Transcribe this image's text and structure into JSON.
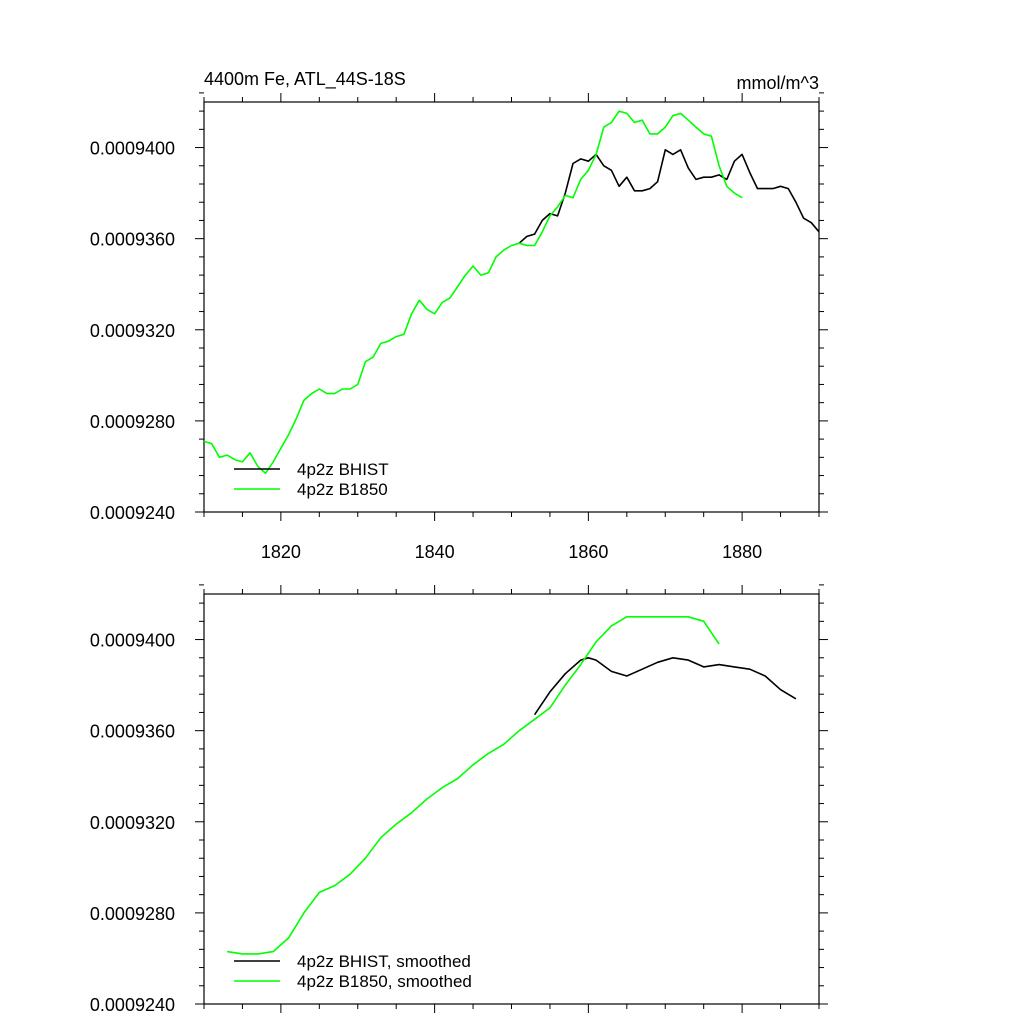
{
  "chart_data": [
    {
      "type": "line",
      "title": "4400m Fe, ATL_44S-18S",
      "units": "mmol/m^3",
      "xlabel": "",
      "ylabel": "",
      "xlim": [
        1810,
        1890
      ],
      "ylim": [
        0.000924,
        0.000942
      ],
      "x_ticks": [
        1820,
        1840,
        1860,
        1880
      ],
      "x_tick_labels": [
        "1820",
        "1840",
        "1860",
        "1880"
      ],
      "y_ticks": [
        0.000924,
        0.000928,
        0.000932,
        0.000936,
        0.00094
      ],
      "y_tick_labels": [
        "0.0009240",
        "0.0009280",
        "0.0009320",
        "0.0009360",
        "0.0009400"
      ],
      "legend_position": "bottom-left",
      "series": [
        {
          "name": "4p2z BHIST",
          "color": "#000000",
          "x": [
            1851,
            1852,
            1853,
            1854,
            1855,
            1856,
            1857,
            1858,
            1859,
            1860,
            1861,
            1862,
            1863,
            1864,
            1865,
            1866,
            1867,
            1868,
            1869,
            1870,
            1871,
            1872,
            1873,
            1874,
            1875,
            1876,
            1877,
            1878,
            1879,
            1880,
            1881,
            1882,
            1883,
            1884,
            1885,
            1886,
            1887,
            1888,
            1889,
            1890
          ],
          "values": [
            0.0009358,
            0.0009361,
            0.0009362,
            0.0009368,
            0.0009371,
            0.000937,
            0.000938,
            0.0009393,
            0.0009395,
            0.0009394,
            0.0009397,
            0.0009392,
            0.000939,
            0.0009383,
            0.0009387,
            0.0009381,
            0.0009381,
            0.0009382,
            0.0009385,
            0.0009399,
            0.0009397,
            0.0009399,
            0.0009391,
            0.0009386,
            0.0009387,
            0.0009387,
            0.0009388,
            0.0009386,
            0.0009394,
            0.0009397,
            0.0009389,
            0.0009382,
            0.0009382,
            0.0009382,
            0.0009383,
            0.0009382,
            0.0009376,
            0.0009369,
            0.0009367,
            0.0009363
          ]
        },
        {
          "name": "4p2z B1850",
          "color": "#00ff00",
          "x": [
            1810,
            1811,
            1812,
            1813,
            1814,
            1815,
            1816,
            1817,
            1818,
            1819,
            1820,
            1821,
            1822,
            1823,
            1824,
            1825,
            1826,
            1827,
            1828,
            1829,
            1830,
            1831,
            1832,
            1833,
            1834,
            1835,
            1836,
            1837,
            1838,
            1839,
            1840,
            1841,
            1842,
            1843,
            1844,
            1845,
            1846,
            1847,
            1848,
            1849,
            1850,
            1851,
            1852,
            1853,
            1854,
            1855,
            1856,
            1857,
            1858,
            1859,
            1860,
            1861,
            1862,
            1863,
            1864,
            1865,
            1866,
            1867,
            1868,
            1869,
            1870,
            1871,
            1872,
            1873,
            1874,
            1875,
            1876,
            1877,
            1878,
            1879,
            1880
          ],
          "values": [
            0.0009271,
            0.000927,
            0.0009264,
            0.0009265,
            0.0009263,
            0.0009262,
            0.0009266,
            0.000926,
            0.0009257,
            0.0009262,
            0.0009268,
            0.0009274,
            0.0009281,
            0.0009289,
            0.0009292,
            0.0009294,
            0.0009292,
            0.0009292,
            0.0009294,
            0.0009294,
            0.0009296,
            0.0009306,
            0.0009308,
            0.0009314,
            0.0009315,
            0.0009317,
            0.0009318,
            0.0009327,
            0.0009333,
            0.0009329,
            0.0009327,
            0.0009332,
            0.0009334,
            0.0009339,
            0.0009344,
            0.0009348,
            0.0009344,
            0.0009345,
            0.0009352,
            0.0009355,
            0.0009357,
            0.0009358,
            0.0009357,
            0.0009357,
            0.0009363,
            0.000937,
            0.0009374,
            0.0009379,
            0.0009378,
            0.0009386,
            0.000939,
            0.0009397,
            0.0009409,
            0.0009411,
            0.0009416,
            0.0009415,
            0.0009411,
            0.0009412,
            0.0009406,
            0.0009406,
            0.0009409,
            0.0009414,
            0.0009415,
            0.0009412,
            0.0009409,
            0.0009406,
            0.0009405,
            0.0009392,
            0.0009383,
            0.000938,
            0.0009378
          ]
        }
      ]
    },
    {
      "type": "line",
      "title": "",
      "xlabel": "",
      "ylabel": "",
      "xlim": [
        1810,
        1890
      ],
      "ylim": [
        0.000924,
        0.000942
      ],
      "x_ticks": [
        1820,
        1840,
        1860,
        1880
      ],
      "x_tick_labels": [],
      "y_ticks": [
        0.000924,
        0.000928,
        0.000932,
        0.000936,
        0.00094
      ],
      "y_tick_labels": [
        "0.0009240",
        "0.0009280",
        "0.0009320",
        "0.0009360",
        "0.0009400"
      ],
      "legend_position": "bottom-left",
      "series": [
        {
          "name": "4p2z BHIST, smoothed",
          "color": "#000000",
          "x": [
            1853,
            1855,
            1857,
            1859,
            1860,
            1861,
            1863,
            1865,
            1867,
            1869,
            1871,
            1873,
            1875,
            1877,
            1879,
            1881,
            1883,
            1885,
            1887
          ],
          "values": [
            0.0009367,
            0.0009377,
            0.0009385,
            0.0009391,
            0.0009392,
            0.0009391,
            0.0009386,
            0.0009384,
            0.0009387,
            0.000939,
            0.0009392,
            0.0009391,
            0.0009388,
            0.0009389,
            0.0009388,
            0.0009387,
            0.0009384,
            0.0009378,
            0.0009374
          ]
        },
        {
          "name": "4p2z B1850, smoothed",
          "color": "#00ff00",
          "x": [
            1813,
            1815,
            1817,
            1819,
            1821,
            1823,
            1825,
            1827,
            1829,
            1831,
            1833,
            1835,
            1837,
            1839,
            1841,
            1843,
            1845,
            1847,
            1849,
            1851,
            1853,
            1855,
            1857,
            1859,
            1861,
            1863,
            1865,
            1867,
            1869,
            1871,
            1873,
            1875,
            1877
          ],
          "values": [
            0.0009263,
            0.0009262,
            0.0009262,
            0.0009263,
            0.0009269,
            0.000928,
            0.0009289,
            0.0009292,
            0.0009297,
            0.0009304,
            0.0009313,
            0.0009319,
            0.0009324,
            0.000933,
            0.0009335,
            0.0009339,
            0.0009345,
            0.000935,
            0.0009354,
            0.000936,
            0.0009365,
            0.000937,
            0.000938,
            0.0009389,
            0.0009399,
            0.0009406,
            0.000941,
            0.000941,
            0.000941,
            0.000941,
            0.000941,
            0.0009408,
            0.0009398
          ]
        }
      ]
    }
  ]
}
